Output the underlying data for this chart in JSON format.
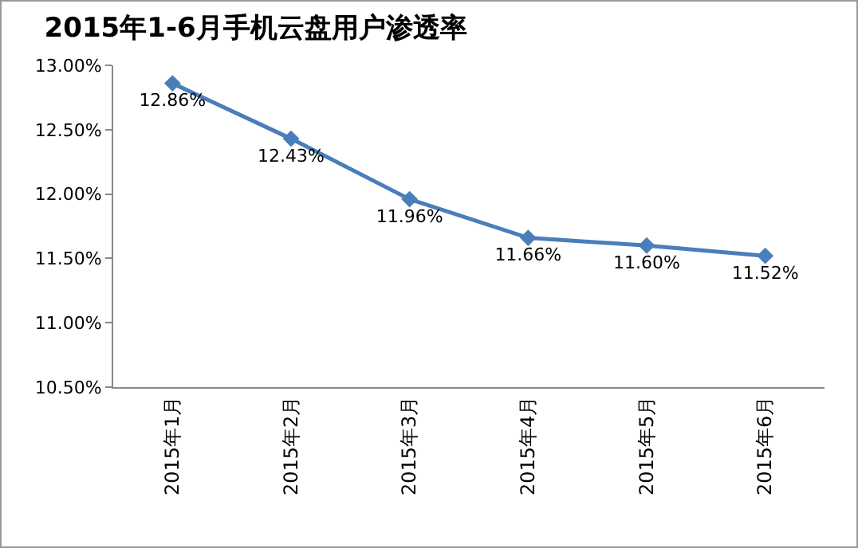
{
  "chart_data": {
    "type": "line",
    "title": "2015年1-6月手机云盘用户渗透率",
    "categories": [
      "2015年1月",
      "2015年2月",
      "2015年3月",
      "2015年4月",
      "2015年5月",
      "2015年6月"
    ],
    "series": [
      {
        "color": "#4a7ebb",
        "values": [
          12.86,
          12.43,
          11.96,
          11.66,
          11.6,
          11.52
        ],
        "value_labels": [
          "12.86%",
          "12.43%",
          "11.96%",
          "11.66%",
          "11.60%",
          "11.52%"
        ]
      }
    ],
    "ylim": [
      10.5,
      13.0
    ],
    "yticks": [
      {
        "value": 10.5,
        "label": "10.50%"
      },
      {
        "value": 11.0,
        "label": "11.00%"
      },
      {
        "value": 11.5,
        "label": "11.50%"
      },
      {
        "value": 12.0,
        "label": "12.00%"
      },
      {
        "value": 12.5,
        "label": "12.50%"
      },
      {
        "value": 13.0,
        "label": "13.00%"
      }
    ],
    "grid": false,
    "legend": false,
    "marker": "diamond",
    "line_style": "solid"
  }
}
